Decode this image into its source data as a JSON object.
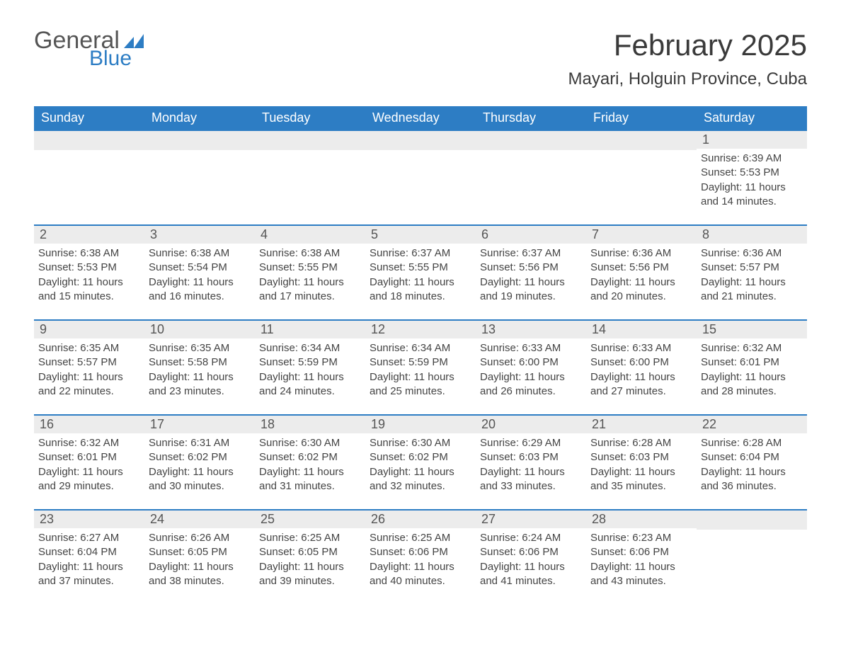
{
  "logo": {
    "general": "General",
    "blue": "Blue",
    "flag_color": "#2d7dc4"
  },
  "header": {
    "month_title": "February 2025",
    "location": "Mayari, Holguin Province, Cuba"
  },
  "colors": {
    "header_bg": "#2d7dc4",
    "header_text": "#ffffff",
    "day_number_bg": "#ececec",
    "body_text": "#444444",
    "page_bg": "#ffffff"
  },
  "weekdays": [
    "Sunday",
    "Monday",
    "Tuesday",
    "Wednesday",
    "Thursday",
    "Friday",
    "Saturday"
  ],
  "weeks": [
    [
      null,
      null,
      null,
      null,
      null,
      null,
      {
        "n": "1",
        "sunrise": "Sunrise: 6:39 AM",
        "sunset": "Sunset: 5:53 PM",
        "daylight1": "Daylight: 11 hours",
        "daylight2": "and 14 minutes."
      }
    ],
    [
      {
        "n": "2",
        "sunrise": "Sunrise: 6:38 AM",
        "sunset": "Sunset: 5:53 PM",
        "daylight1": "Daylight: 11 hours",
        "daylight2": "and 15 minutes."
      },
      {
        "n": "3",
        "sunrise": "Sunrise: 6:38 AM",
        "sunset": "Sunset: 5:54 PM",
        "daylight1": "Daylight: 11 hours",
        "daylight2": "and 16 minutes."
      },
      {
        "n": "4",
        "sunrise": "Sunrise: 6:38 AM",
        "sunset": "Sunset: 5:55 PM",
        "daylight1": "Daylight: 11 hours",
        "daylight2": "and 17 minutes."
      },
      {
        "n": "5",
        "sunrise": "Sunrise: 6:37 AM",
        "sunset": "Sunset: 5:55 PM",
        "daylight1": "Daylight: 11 hours",
        "daylight2": "and 18 minutes."
      },
      {
        "n": "6",
        "sunrise": "Sunrise: 6:37 AM",
        "sunset": "Sunset: 5:56 PM",
        "daylight1": "Daylight: 11 hours",
        "daylight2": "and 19 minutes."
      },
      {
        "n": "7",
        "sunrise": "Sunrise: 6:36 AM",
        "sunset": "Sunset: 5:56 PM",
        "daylight1": "Daylight: 11 hours",
        "daylight2": "and 20 minutes."
      },
      {
        "n": "8",
        "sunrise": "Sunrise: 6:36 AM",
        "sunset": "Sunset: 5:57 PM",
        "daylight1": "Daylight: 11 hours",
        "daylight2": "and 21 minutes."
      }
    ],
    [
      {
        "n": "9",
        "sunrise": "Sunrise: 6:35 AM",
        "sunset": "Sunset: 5:57 PM",
        "daylight1": "Daylight: 11 hours",
        "daylight2": "and 22 minutes."
      },
      {
        "n": "10",
        "sunrise": "Sunrise: 6:35 AM",
        "sunset": "Sunset: 5:58 PM",
        "daylight1": "Daylight: 11 hours",
        "daylight2": "and 23 minutes."
      },
      {
        "n": "11",
        "sunrise": "Sunrise: 6:34 AM",
        "sunset": "Sunset: 5:59 PM",
        "daylight1": "Daylight: 11 hours",
        "daylight2": "and 24 minutes."
      },
      {
        "n": "12",
        "sunrise": "Sunrise: 6:34 AM",
        "sunset": "Sunset: 5:59 PM",
        "daylight1": "Daylight: 11 hours",
        "daylight2": "and 25 minutes."
      },
      {
        "n": "13",
        "sunrise": "Sunrise: 6:33 AM",
        "sunset": "Sunset: 6:00 PM",
        "daylight1": "Daylight: 11 hours",
        "daylight2": "and 26 minutes."
      },
      {
        "n": "14",
        "sunrise": "Sunrise: 6:33 AM",
        "sunset": "Sunset: 6:00 PM",
        "daylight1": "Daylight: 11 hours",
        "daylight2": "and 27 minutes."
      },
      {
        "n": "15",
        "sunrise": "Sunrise: 6:32 AM",
        "sunset": "Sunset: 6:01 PM",
        "daylight1": "Daylight: 11 hours",
        "daylight2": "and 28 minutes."
      }
    ],
    [
      {
        "n": "16",
        "sunrise": "Sunrise: 6:32 AM",
        "sunset": "Sunset: 6:01 PM",
        "daylight1": "Daylight: 11 hours",
        "daylight2": "and 29 minutes."
      },
      {
        "n": "17",
        "sunrise": "Sunrise: 6:31 AM",
        "sunset": "Sunset: 6:02 PM",
        "daylight1": "Daylight: 11 hours",
        "daylight2": "and 30 minutes."
      },
      {
        "n": "18",
        "sunrise": "Sunrise: 6:30 AM",
        "sunset": "Sunset: 6:02 PM",
        "daylight1": "Daylight: 11 hours",
        "daylight2": "and 31 minutes."
      },
      {
        "n": "19",
        "sunrise": "Sunrise: 6:30 AM",
        "sunset": "Sunset: 6:02 PM",
        "daylight1": "Daylight: 11 hours",
        "daylight2": "and 32 minutes."
      },
      {
        "n": "20",
        "sunrise": "Sunrise: 6:29 AM",
        "sunset": "Sunset: 6:03 PM",
        "daylight1": "Daylight: 11 hours",
        "daylight2": "and 33 minutes."
      },
      {
        "n": "21",
        "sunrise": "Sunrise: 6:28 AM",
        "sunset": "Sunset: 6:03 PM",
        "daylight1": "Daylight: 11 hours",
        "daylight2": "and 35 minutes."
      },
      {
        "n": "22",
        "sunrise": "Sunrise: 6:28 AM",
        "sunset": "Sunset: 6:04 PM",
        "daylight1": "Daylight: 11 hours",
        "daylight2": "and 36 minutes."
      }
    ],
    [
      {
        "n": "23",
        "sunrise": "Sunrise: 6:27 AM",
        "sunset": "Sunset: 6:04 PM",
        "daylight1": "Daylight: 11 hours",
        "daylight2": "and 37 minutes."
      },
      {
        "n": "24",
        "sunrise": "Sunrise: 6:26 AM",
        "sunset": "Sunset: 6:05 PM",
        "daylight1": "Daylight: 11 hours",
        "daylight2": "and 38 minutes."
      },
      {
        "n": "25",
        "sunrise": "Sunrise: 6:25 AM",
        "sunset": "Sunset: 6:05 PM",
        "daylight1": "Daylight: 11 hours",
        "daylight2": "and 39 minutes."
      },
      {
        "n": "26",
        "sunrise": "Sunrise: 6:25 AM",
        "sunset": "Sunset: 6:06 PM",
        "daylight1": "Daylight: 11 hours",
        "daylight2": "and 40 minutes."
      },
      {
        "n": "27",
        "sunrise": "Sunrise: 6:24 AM",
        "sunset": "Sunset: 6:06 PM",
        "daylight1": "Daylight: 11 hours",
        "daylight2": "and 41 minutes."
      },
      {
        "n": "28",
        "sunrise": "Sunrise: 6:23 AM",
        "sunset": "Sunset: 6:06 PM",
        "daylight1": "Daylight: 11 hours",
        "daylight2": "and 43 minutes."
      },
      null
    ]
  ]
}
